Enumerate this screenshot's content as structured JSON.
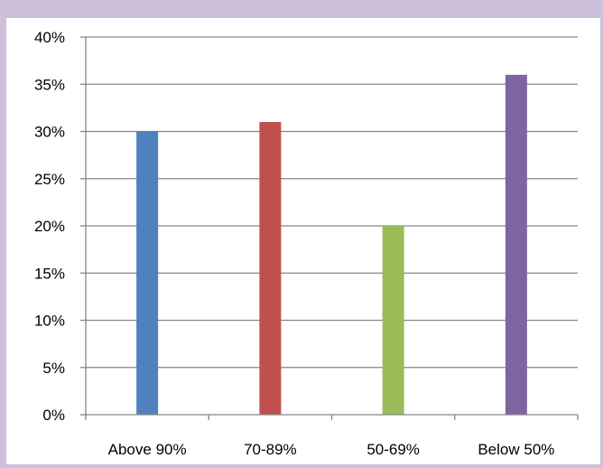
{
  "chart_data": {
    "type": "bar",
    "title": "",
    "xlabel": "",
    "ylabel": "",
    "categories": [
      "Above 90%",
      "70-89%",
      "50-69%",
      "Below 50%"
    ],
    "values": [
      30,
      31,
      20,
      36
    ],
    "value_unit": "%",
    "ylim": [
      0,
      40
    ],
    "yticks": [
      "0%",
      "5%",
      "10%",
      "15%",
      "20%",
      "25%",
      "30%",
      "35%",
      "40%"
    ],
    "colors": [
      "#4f81bd",
      "#c0504d",
      "#9bbb59",
      "#8064a2"
    ],
    "grid": true,
    "legend": "none"
  },
  "style": {
    "frame_color": "#ccc0da",
    "grid_color": "#868686"
  }
}
